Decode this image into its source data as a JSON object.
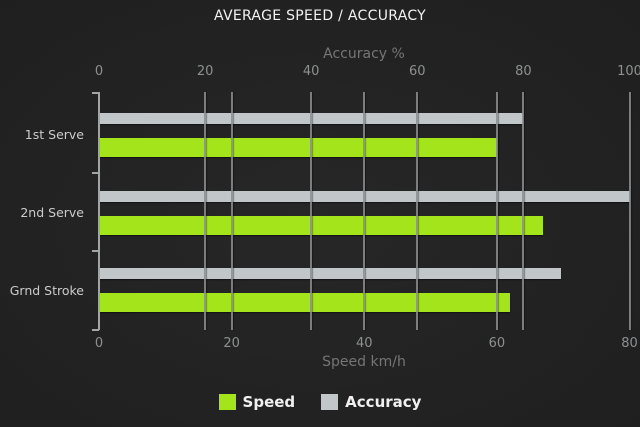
{
  "chart_data": {
    "type": "bar",
    "orientation": "horizontal",
    "title": "AVERAGE SPEED / ACCURACY",
    "categories": [
      "1st Serve",
      "2nd Serve",
      "Grnd Stroke"
    ],
    "series": [
      {
        "name": "Speed",
        "axis": "bottom",
        "color": "#a4e41a",
        "values": [
          60,
          67,
          62
        ]
      },
      {
        "name": "Accuracy",
        "axis": "top",
        "color": "#c1c6c8",
        "values": [
          80,
          100,
          87
        ]
      }
    ],
    "axes": {
      "top": {
        "label": "Accuracy %",
        "min": 0,
        "max": 100,
        "ticks": [
          0,
          20,
          40,
          60,
          80,
          100
        ]
      },
      "bottom": {
        "label": "Speed km/h",
        "min": 0,
        "max": 80,
        "ticks": [
          0,
          20,
          40,
          60,
          80
        ]
      }
    },
    "grid": true,
    "legend": {
      "position": "bottom",
      "items": [
        "Speed",
        "Accuracy"
      ]
    }
  }
}
